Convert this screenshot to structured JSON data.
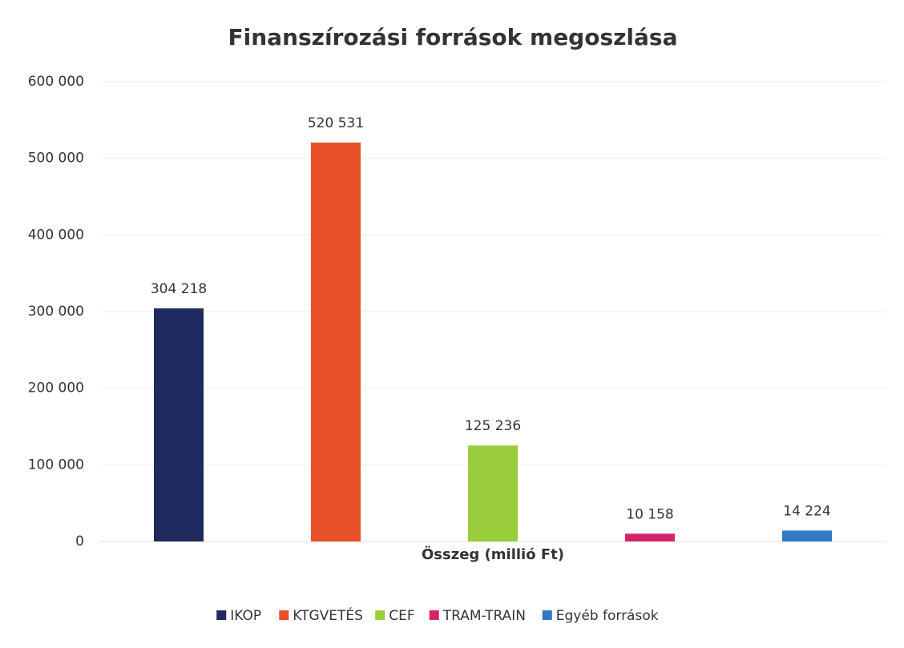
{
  "chart_data": {
    "type": "bar",
    "title": "Finanszírozási források megoszlása",
    "categories": [
      "Összeg (millió Ft)"
    ],
    "series": [
      {
        "name": "IKOP",
        "color": "#1f2a5e",
        "values": [
          304218
        ],
        "value_labels": [
          "304 218"
        ]
      },
      {
        "name": "KTGVETÉS",
        "color": "#e8502a",
        "values": [
          520531
        ],
        "value_labels": [
          "520 531"
        ]
      },
      {
        "name": "CEF",
        "color": "#9acd3c",
        "values": [
          125236
        ],
        "value_labels": [
          "125 236"
        ]
      },
      {
        "name": "TRAM-TRAIN",
        "color": "#d6246a",
        "values": [
          10158
        ],
        "value_labels": [
          "10 158"
        ]
      },
      {
        "name": "Egyéb források",
        "color": "#2e7bc4",
        "values": [
          14224
        ],
        "value_labels": [
          "14 224"
        ]
      }
    ],
    "ylim": [
      0,
      600000
    ],
    "yticks": [
      0,
      {
        "value": 100000,
        "label": "100 000"
      },
      {
        "value": 200000,
        "label": "200 000"
      },
      {
        "value": 300000,
        "label": "300 000"
      },
      {
        "value": 400000,
        "label": "400 000"
      },
      {
        "value": 500000,
        "label": "500 000"
      },
      {
        "value": 600000,
        "label": "600 000"
      }
    ],
    "grid": true,
    "legend": "bottom"
  }
}
